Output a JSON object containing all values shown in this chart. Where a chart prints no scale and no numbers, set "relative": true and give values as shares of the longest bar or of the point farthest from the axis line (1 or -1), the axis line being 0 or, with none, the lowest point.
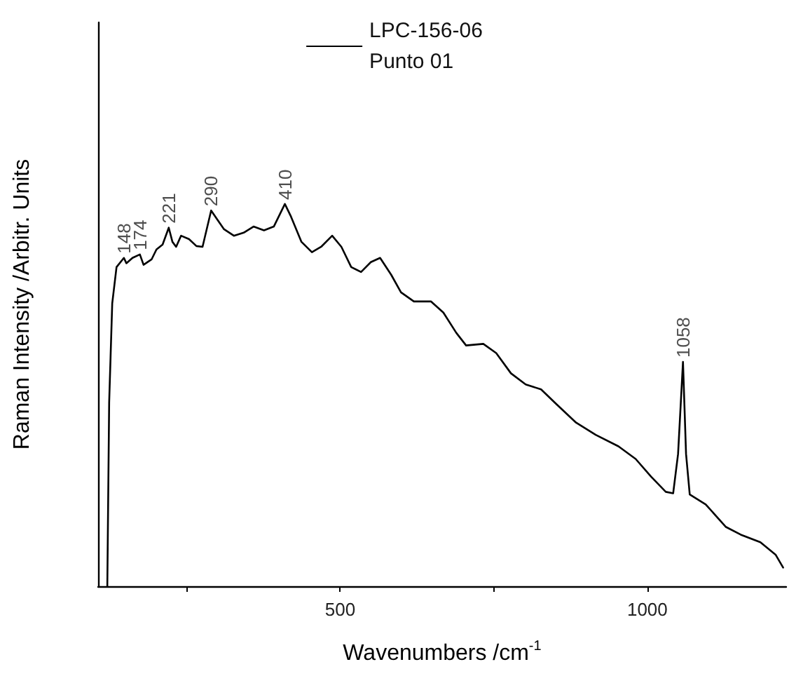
{
  "chart_data": {
    "type": "line",
    "relative": true,
    "xlabel": "Wavenumbers /cm$^{-1}$",
    "ylabel": "Raman Intensity /Arbitr. Units",
    "xlim": [
      106,
      1226
    ],
    "xticks": [
      {
        "value": 250,
        "label": null
      },
      500,
      {
        "value": 750,
        "label": null
      },
      1000
    ],
    "legend": "top",
    "grid": false,
    "marker": "none",
    "line_style": "solid",
    "series": [
      {
        "name": "LPC-156-06\nPunto 01",
        "color": "#000000",
        "x": [
          121,
          124,
          129,
          136,
          148,
          152,
          162,
          174,
          180,
          193,
          201,
          211,
          221,
          227,
          233,
          241,
          254,
          266,
          276,
          290,
          298,
          311,
          327,
          343,
          359,
          376,
          392,
          410,
          420,
          437,
          454,
          469,
          487,
          502,
          518,
          534,
          550,
          565,
          583,
          599,
          620,
          648,
          668,
          689,
          705,
          733,
          754,
          778,
          802,
          827,
          851,
          884,
          916,
          953,
          981,
          1006,
          1030,
          1042,
          1050,
          1058,
          1063,
          1069,
          1095,
          1128,
          1152,
          1184,
          1209,
          1221
        ],
        "values": [
          0,
          0.48,
          0.74,
          0.835,
          0.859,
          0.845,
          0.859,
          0.868,
          0.841,
          0.855,
          0.881,
          0.894,
          0.938,
          0.901,
          0.888,
          0.917,
          0.908,
          0.89,
          0.888,
          0.983,
          0.964,
          0.934,
          0.917,
          0.925,
          0.941,
          0.931,
          0.941,
          1.0,
          0.967,
          0.901,
          0.874,
          0.888,
          0.917,
          0.888,
          0.835,
          0.822,
          0.848,
          0.859,
          0.815,
          0.769,
          0.745,
          0.745,
          0.716,
          0.663,
          0.63,
          0.634,
          0.61,
          0.557,
          0.528,
          0.515,
          0.478,
          0.428,
          0.396,
          0.366,
          0.333,
          0.287,
          0.247,
          0.243,
          0.346,
          0.587,
          0.346,
          0.24,
          0.214,
          0.155,
          0.135,
          0.115,
          0.082,
          0.049
        ]
      }
    ],
    "annotations": [
      {
        "text": "148",
        "x": 148,
        "y": 0.859
      },
      {
        "text": "174",
        "x": 174,
        "y": 0.868
      },
      {
        "text": "221",
        "x": 221,
        "y": 0.938
      },
      {
        "text": "290",
        "x": 290,
        "y": 0.983
      },
      {
        "text": "410",
        "x": 410,
        "y": 1.0
      },
      {
        "text": "1058",
        "x": 1058,
        "y": 0.587
      }
    ]
  }
}
